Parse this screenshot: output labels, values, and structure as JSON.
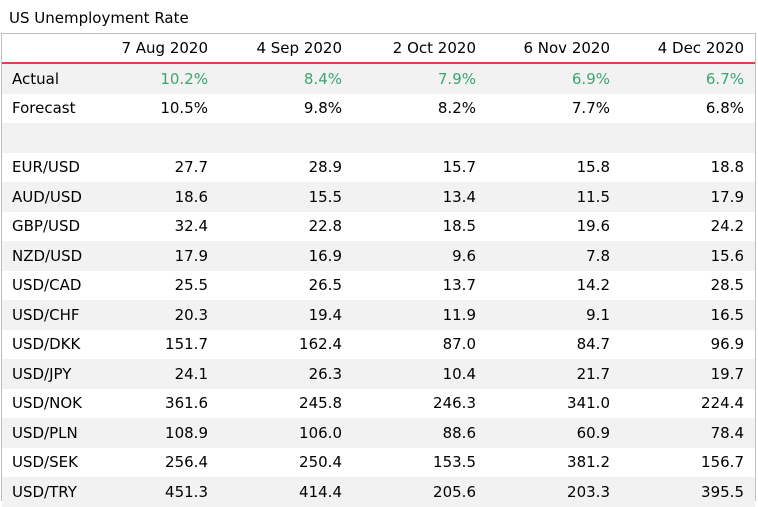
{
  "title": "US Unemployment Rate",
  "chart_data": {
    "type": "table",
    "title": "US Unemployment Rate",
    "columns": [
      "",
      "7 Aug 2020",
      "4 Sep 2020",
      "2 Oct 2020",
      "6 Nov 2020",
      "4 Dec 2020"
    ],
    "rows": [
      {
        "label": "Actual",
        "values": [
          "10.2%",
          "8.4%",
          "7.9%",
          "6.9%",
          "6.7%"
        ]
      },
      {
        "label": "Forecast",
        "values": [
          "10.5%",
          "9.8%",
          "8.2%",
          "7.7%",
          "6.8%"
        ]
      },
      {
        "label": "",
        "values": [
          "",
          "",
          "",
          "",
          ""
        ]
      },
      {
        "label": "EUR/USD",
        "values": [
          "27.7",
          "28.9",
          "15.7",
          "15.8",
          "18.8"
        ]
      },
      {
        "label": "AUD/USD",
        "values": [
          "18.6",
          "15.5",
          "13.4",
          "11.5",
          "17.9"
        ]
      },
      {
        "label": "GBP/USD",
        "values": [
          "32.4",
          "22.8",
          "18.5",
          "19.6",
          "24.2"
        ]
      },
      {
        "label": "NZD/USD",
        "values": [
          "17.9",
          "16.9",
          "9.6",
          "7.8",
          "15.6"
        ]
      },
      {
        "label": "USD/CAD",
        "values": [
          "25.5",
          "26.5",
          "13.7",
          "14.2",
          "28.5"
        ]
      },
      {
        "label": "USD/CHF",
        "values": [
          "20.3",
          "19.4",
          "11.9",
          "9.1",
          "16.5"
        ]
      },
      {
        "label": "USD/DKK",
        "values": [
          "151.7",
          "162.4",
          "87.0",
          "84.7",
          "96.9"
        ]
      },
      {
        "label": "USD/JPY",
        "values": [
          "24.1",
          "26.3",
          "10.4",
          "21.7",
          "19.7"
        ]
      },
      {
        "label": "USD/NOK",
        "values": [
          "361.6",
          "245.8",
          "246.3",
          "341.0",
          "224.4"
        ]
      },
      {
        "label": "USD/PLN",
        "values": [
          "108.9",
          "106.0",
          "88.6",
          "60.9",
          "78.4"
        ]
      },
      {
        "label": "USD/SEK",
        "values": [
          "256.4",
          "250.4",
          "153.5",
          "381.2",
          "156.7"
        ]
      },
      {
        "label": "USD/TRY",
        "values": [
          "451.3",
          "414.4",
          "205.6",
          "203.3",
          "395.5"
        ]
      }
    ]
  },
  "colors": {
    "header_rule": "#d9434e",
    "actual_value": "#3aa672",
    "alt_row_bg": "#f2f2f2",
    "frame_border": "#bfbfbf"
  }
}
